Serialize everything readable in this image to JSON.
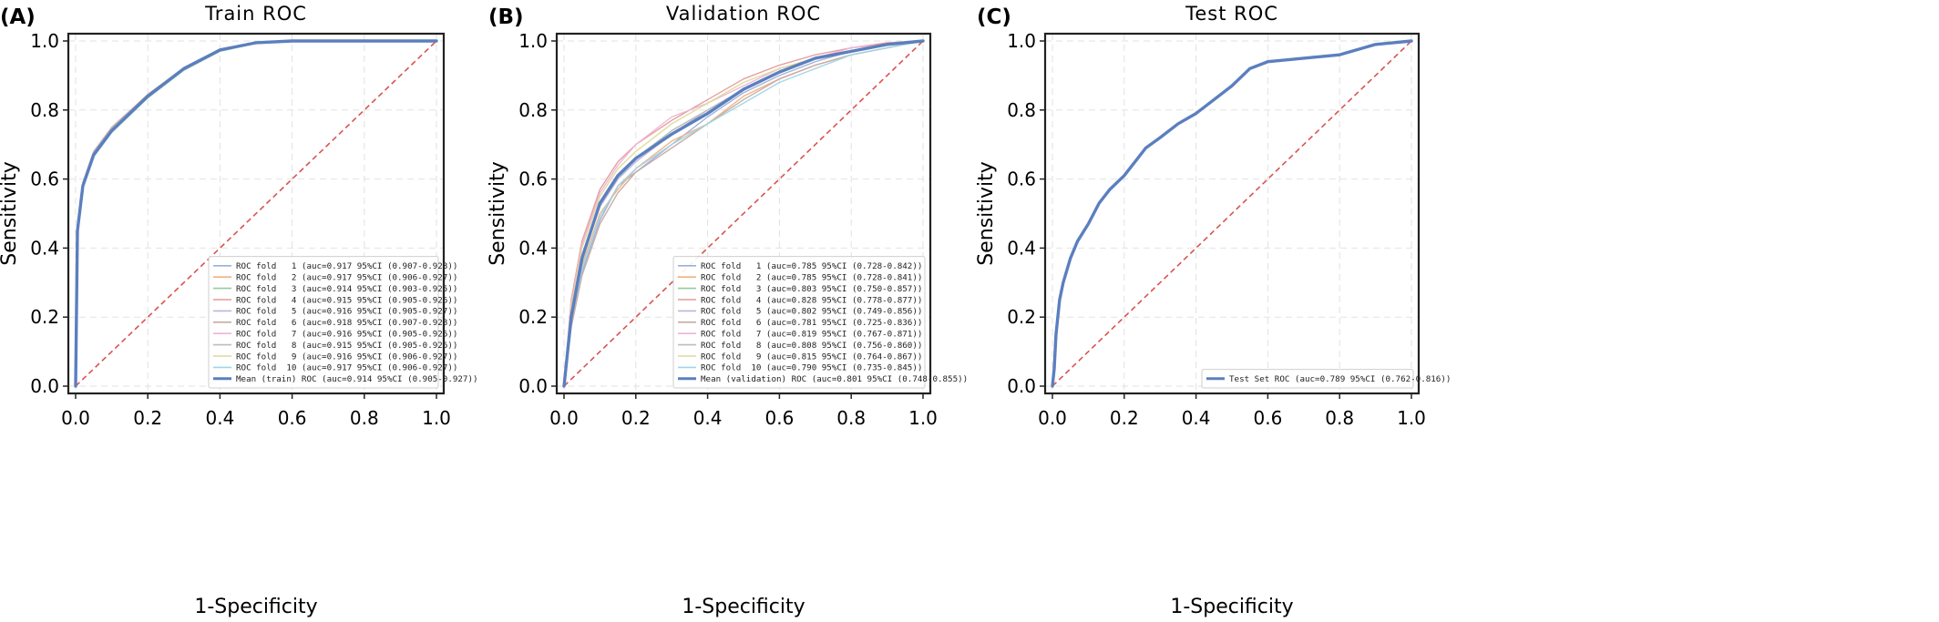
{
  "figure": {
    "panels": [
      {
        "letter": "(A)",
        "title": "Train ROC",
        "xlabel": "1-Specificity",
        "ylabel": "Sensitivity"
      },
      {
        "letter": "(B)",
        "title": "Validation ROC",
        "xlabel": "1-Specificity",
        "ylabel": "Sensitivity"
      },
      {
        "letter": "(C)",
        "title": "Test ROC",
        "xlabel": "1-Specificity",
        "ylabel": "Sensitivity"
      }
    ]
  },
  "colors": {
    "folds": [
      "#9bb0d9",
      "#f0b27d",
      "#93cc9f",
      "#e49a9a",
      "#c2b2dc",
      "#c8aaa2",
      "#efb3d6",
      "#bdbdbd",
      "#dfd99a",
      "#9ed6e6"
    ],
    "mean": "#5b7fbf",
    "diagonal": "#d9534f"
  },
  "chart_data": [
    {
      "type": "line",
      "title": "Train ROC",
      "xlabel": "1-Specificity",
      "ylabel": "Sensitivity",
      "xlim": [
        0,
        1
      ],
      "ylim": [
        0,
        1
      ],
      "xticks": [
        "0.0",
        "0.2",
        "0.4",
        "0.6",
        "0.8",
        "1.0"
      ],
      "yticks": [
        "0.0",
        "0.2",
        "0.4",
        "0.6",
        "0.8",
        "1.0"
      ],
      "grid": true,
      "legend_position": "bottom-right",
      "series": [
        {
          "name": "ROC fold   1 (auc=0.917 95%CI (0.907-0.928))",
          "x": [
            0,
            0.005,
            0.02,
            0.05,
            0.1,
            0.2,
            0.3,
            0.4,
            0.5,
            0.6,
            1.0
          ],
          "y": [
            0,
            0.45,
            0.58,
            0.67,
            0.74,
            0.84,
            0.92,
            0.975,
            0.995,
            1.0,
            1.0
          ]
        },
        {
          "name": "ROC fold   2 (auc=0.917 95%CI (0.906-0.927))",
          "x": [
            0,
            0.005,
            0.02,
            0.05,
            0.1,
            0.2,
            0.3,
            0.4,
            0.5,
            0.6,
            1.0
          ],
          "y": [
            0,
            0.455,
            0.585,
            0.675,
            0.745,
            0.845,
            0.92,
            0.975,
            0.995,
            1.0,
            1.0
          ]
        },
        {
          "name": "ROC fold   3 (auc=0.914 95%CI (0.903-0.925))",
          "x": [
            0,
            0.005,
            0.02,
            0.05,
            0.1,
            0.2,
            0.3,
            0.4,
            0.5,
            0.6,
            1.0
          ],
          "y": [
            0,
            0.44,
            0.575,
            0.665,
            0.735,
            0.835,
            0.915,
            0.97,
            0.993,
            1.0,
            1.0
          ]
        },
        {
          "name": "ROC fold   4 (auc=0.915 95%CI (0.905-0.926))",
          "x": [
            0,
            0.005,
            0.02,
            0.05,
            0.1,
            0.2,
            0.3,
            0.4,
            0.5,
            0.6,
            1.0
          ],
          "y": [
            0,
            0.45,
            0.58,
            0.67,
            0.74,
            0.84,
            0.918,
            0.972,
            0.994,
            1.0,
            1.0
          ]
        },
        {
          "name": "ROC fold   5 (auc=0.916 95%CI (0.905-0.927))",
          "x": [
            0,
            0.005,
            0.02,
            0.05,
            0.1,
            0.2,
            0.3,
            0.4,
            0.5,
            0.6,
            1.0
          ],
          "y": [
            0,
            0.45,
            0.58,
            0.67,
            0.74,
            0.84,
            0.92,
            0.974,
            0.995,
            1.0,
            1.0
          ]
        },
        {
          "name": "ROC fold   6 (auc=0.918 95%CI (0.907-0.928))",
          "x": [
            0,
            0.005,
            0.02,
            0.05,
            0.1,
            0.2,
            0.3,
            0.4,
            0.5,
            0.6,
            1.0
          ],
          "y": [
            0,
            0.46,
            0.59,
            0.68,
            0.75,
            0.845,
            0.922,
            0.976,
            0.996,
            1.0,
            1.0
          ]
        },
        {
          "name": "ROC fold   7 (auc=0.916 95%CI (0.905-0.926))",
          "x": [
            0,
            0.005,
            0.02,
            0.05,
            0.1,
            0.2,
            0.3,
            0.4,
            0.5,
            0.6,
            1.0
          ],
          "y": [
            0,
            0.45,
            0.58,
            0.67,
            0.742,
            0.84,
            0.92,
            0.974,
            0.995,
            1.0,
            1.0
          ]
        },
        {
          "name": "ROC fold   8 (auc=0.915 95%CI (0.905-0.926))",
          "x": [
            0,
            0.005,
            0.02,
            0.05,
            0.1,
            0.2,
            0.3,
            0.4,
            0.5,
            0.6,
            1.0
          ],
          "y": [
            0,
            0.448,
            0.578,
            0.668,
            0.738,
            0.838,
            0.918,
            0.972,
            0.994,
            1.0,
            1.0
          ]
        },
        {
          "name": "ROC fold   9 (auc=0.916 95%CI (0.906-0.927))",
          "x": [
            0,
            0.005,
            0.02,
            0.05,
            0.1,
            0.2,
            0.3,
            0.4,
            0.5,
            0.6,
            1.0
          ],
          "y": [
            0,
            0.45,
            0.58,
            0.67,
            0.74,
            0.84,
            0.92,
            0.974,
            0.995,
            1.0,
            1.0
          ]
        },
        {
          "name": "ROC fold  10 (auc=0.917 95%CI (0.906-0.927))",
          "x": [
            0,
            0.005,
            0.02,
            0.05,
            0.1,
            0.2,
            0.3,
            0.4,
            0.5,
            0.6,
            1.0
          ],
          "y": [
            0,
            0.455,
            0.585,
            0.675,
            0.745,
            0.843,
            0.92,
            0.975,
            0.995,
            1.0,
            1.0
          ]
        },
        {
          "name": "Mean (train) ROC (auc=0.914 95%CI (0.905-0.927))",
          "mean": true,
          "x": [
            0,
            0.005,
            0.02,
            0.05,
            0.1,
            0.2,
            0.3,
            0.4,
            0.5,
            0.6,
            1.0
          ],
          "y": [
            0,
            0.45,
            0.58,
            0.67,
            0.74,
            0.84,
            0.92,
            0.974,
            0.995,
            1.0,
            1.0
          ]
        }
      ]
    },
    {
      "type": "line",
      "title": "Validation ROC",
      "xlabel": "1-Specificity",
      "ylabel": "Sensitivity",
      "xlim": [
        0,
        1
      ],
      "ylim": [
        0,
        1
      ],
      "xticks": [
        "0.0",
        "0.2",
        "0.4",
        "0.6",
        "0.8",
        "1.0"
      ],
      "yticks": [
        "0.0",
        "0.2",
        "0.4",
        "0.6",
        "0.8",
        "1.0"
      ],
      "grid": true,
      "legend_position": "bottom-right",
      "series": [
        {
          "name": "ROC fold   1 (auc=0.785 95%CI (0.728-0.842))",
          "x": [
            0,
            0.02,
            0.05,
            0.1,
            0.15,
            0.2,
            0.3,
            0.4,
            0.5,
            0.6,
            0.7,
            0.8,
            0.9,
            1.0
          ],
          "y": [
            0,
            0.18,
            0.33,
            0.48,
            0.58,
            0.62,
            0.7,
            0.78,
            0.85,
            0.9,
            0.94,
            0.97,
            0.99,
            1.0
          ]
        },
        {
          "name": "ROC fold   2 (auc=0.785 95%CI (0.728-0.841))",
          "x": [
            0,
            0.02,
            0.05,
            0.1,
            0.15,
            0.2,
            0.3,
            0.4,
            0.5,
            0.6,
            0.7,
            0.8,
            0.9,
            1.0
          ],
          "y": [
            0,
            0.2,
            0.35,
            0.5,
            0.57,
            0.63,
            0.71,
            0.76,
            0.84,
            0.89,
            0.93,
            0.96,
            0.98,
            1.0
          ]
        },
        {
          "name": "ROC fold   3 (auc=0.803 95%CI (0.750-0.857))",
          "x": [
            0,
            0.02,
            0.05,
            0.1,
            0.15,
            0.2,
            0.3,
            0.4,
            0.5,
            0.6,
            0.7,
            0.8,
            0.9,
            1.0
          ],
          "y": [
            0,
            0.22,
            0.38,
            0.52,
            0.6,
            0.66,
            0.74,
            0.8,
            0.86,
            0.91,
            0.95,
            0.97,
            0.99,
            1.0
          ]
        },
        {
          "name": "ROC fold   4 (auc=0.828 95%CI (0.778-0.877))",
          "x": [
            0,
            0.02,
            0.05,
            0.1,
            0.15,
            0.2,
            0.3,
            0.4,
            0.5,
            0.6,
            0.7,
            0.8,
            0.9,
            1.0
          ],
          "y": [
            0,
            0.25,
            0.42,
            0.57,
            0.65,
            0.7,
            0.77,
            0.83,
            0.89,
            0.93,
            0.96,
            0.98,
            0.995,
            1.0
          ]
        },
        {
          "name": "ROC fold   5 (auc=0.802 95%CI (0.749-0.856))",
          "x": [
            0,
            0.02,
            0.05,
            0.1,
            0.15,
            0.2,
            0.3,
            0.4,
            0.5,
            0.6,
            0.7,
            0.8,
            0.9,
            1.0
          ],
          "y": [
            0,
            0.21,
            0.37,
            0.52,
            0.6,
            0.65,
            0.73,
            0.8,
            0.86,
            0.91,
            0.95,
            0.97,
            0.99,
            1.0
          ]
        },
        {
          "name": "ROC fold   6 (auc=0.781 95%CI (0.725-0.836))",
          "x": [
            0,
            0.02,
            0.05,
            0.1,
            0.15,
            0.2,
            0.3,
            0.4,
            0.5,
            0.6,
            0.7,
            0.8,
            0.9,
            1.0
          ],
          "y": [
            0,
            0.17,
            0.32,
            0.47,
            0.56,
            0.62,
            0.69,
            0.76,
            0.83,
            0.89,
            0.93,
            0.96,
            0.98,
            1.0
          ]
        },
        {
          "name": "ROC fold   7 (auc=0.819 95%CI (0.767-0.871))",
          "x": [
            0,
            0.02,
            0.05,
            0.1,
            0.15,
            0.2,
            0.3,
            0.4,
            0.5,
            0.6,
            0.7,
            0.8,
            0.9,
            1.0
          ],
          "y": [
            0,
            0.24,
            0.41,
            0.56,
            0.64,
            0.7,
            0.78,
            0.82,
            0.87,
            0.92,
            0.95,
            0.98,
            0.99,
            1.0
          ]
        },
        {
          "name": "ROC fold   8 (auc=0.808 95%CI (0.756-0.860))",
          "x": [
            0,
            0.02,
            0.05,
            0.1,
            0.15,
            0.2,
            0.3,
            0.4,
            0.5,
            0.6,
            0.7,
            0.8,
            0.9,
            1.0
          ],
          "y": [
            0,
            0.22,
            0.38,
            0.53,
            0.61,
            0.66,
            0.74,
            0.8,
            0.86,
            0.91,
            0.95,
            0.97,
            0.99,
            1.0
          ]
        },
        {
          "name": "ROC fold   9 (auc=0.815 95%CI (0.764-0.867))",
          "x": [
            0,
            0.02,
            0.05,
            0.1,
            0.15,
            0.2,
            0.3,
            0.4,
            0.5,
            0.6,
            0.7,
            0.8,
            0.9,
            1.0
          ],
          "y": [
            0,
            0.23,
            0.4,
            0.55,
            0.63,
            0.68,
            0.76,
            0.82,
            0.88,
            0.92,
            0.95,
            0.97,
            0.99,
            1.0
          ]
        },
        {
          "name": "ROC fold  10 (auc=0.790 95%CI (0.735-0.845))",
          "x": [
            0,
            0.02,
            0.05,
            0.1,
            0.15,
            0.2,
            0.3,
            0.4,
            0.5,
            0.6,
            0.7,
            0.8,
            0.9,
            1.0
          ],
          "y": [
            0,
            0.19,
            0.34,
            0.49,
            0.58,
            0.63,
            0.7,
            0.76,
            0.82,
            0.88,
            0.92,
            0.96,
            0.98,
            1.0
          ]
        },
        {
          "name": "Mean (validation) ROC (auc=0.801 95%CI (0.748-0.855))",
          "mean": true,
          "x": [
            0,
            0.02,
            0.05,
            0.1,
            0.15,
            0.2,
            0.3,
            0.4,
            0.5,
            0.6,
            0.7,
            0.8,
            0.9,
            1.0
          ],
          "y": [
            0,
            0.2,
            0.37,
            0.53,
            0.61,
            0.66,
            0.73,
            0.79,
            0.86,
            0.91,
            0.95,
            0.97,
            0.99,
            1.0
          ]
        }
      ]
    },
    {
      "type": "line",
      "title": "Test ROC",
      "xlabel": "1-Specificity",
      "ylabel": "Sensitivity",
      "xlim": [
        0,
        1
      ],
      "ylim": [
        0,
        1
      ],
      "xticks": [
        "0.0",
        "0.2",
        "0.4",
        "0.6",
        "0.8",
        "1.0"
      ],
      "yticks": [
        "0.0",
        "0.2",
        "0.4",
        "0.6",
        "0.8",
        "1.0"
      ],
      "grid": true,
      "legend_position": "bottom-right",
      "series": [
        {
          "name": "Test Set ROC (auc=0.789 95%CI (0.762-0.816))",
          "mean": true,
          "x": [
            0,
            0.005,
            0.01,
            0.02,
            0.03,
            0.05,
            0.07,
            0.1,
            0.13,
            0.16,
            0.2,
            0.23,
            0.26,
            0.3,
            0.35,
            0.4,
            0.45,
            0.5,
            0.55,
            0.6,
            0.7,
            0.8,
            0.9,
            1.0
          ],
          "y": [
            0,
            0.05,
            0.15,
            0.25,
            0.3,
            0.37,
            0.42,
            0.47,
            0.53,
            0.57,
            0.61,
            0.65,
            0.69,
            0.72,
            0.76,
            0.79,
            0.83,
            0.87,
            0.92,
            0.94,
            0.95,
            0.96,
            0.99,
            1.0
          ]
        }
      ]
    }
  ]
}
